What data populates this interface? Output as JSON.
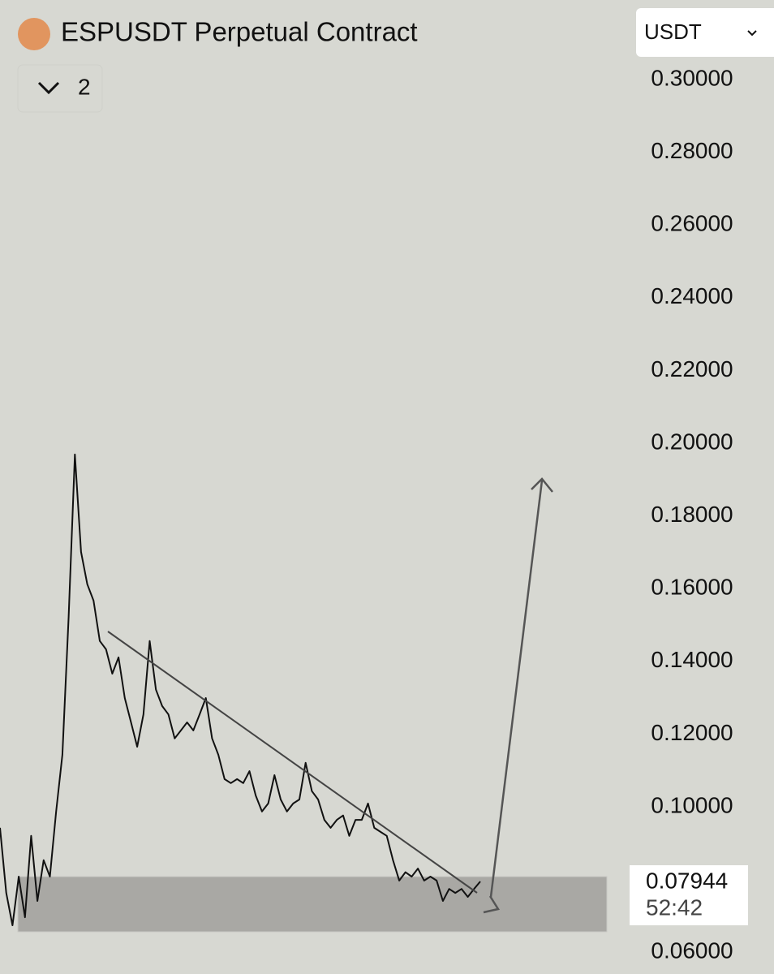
{
  "chart_data": {
    "type": "line",
    "title": "ESPUSDT Perpetual Contract",
    "indicator_count": "2",
    "currency": "USDT",
    "current_price_label": "0.07944",
    "countdown": "52:42",
    "color": "#111111",
    "values": [
      0.0942,
      0.0763,
      0.0674,
      0.0808,
      0.0696,
      0.092,
      0.0741,
      0.0853,
      0.0808,
      0.0987,
      0.1143,
      0.1522,
      0.1969,
      0.1701,
      0.1612,
      0.1567,
      0.1456,
      0.1433,
      0.1366,
      0.1411,
      0.1299,
      0.1232,
      0.1165,
      0.1254,
      0.1456,
      0.1322,
      0.1277,
      0.1254,
      0.1188,
      0.121,
      0.1232,
      0.121,
      0.1254,
      0.1299,
      0.1188,
      0.1143,
      0.1076,
      0.1065,
      0.1076,
      0.1065,
      0.1098,
      0.1031,
      0.0987,
      0.1009,
      0.1087,
      0.102,
      0.0987,
      0.1009,
      0.102,
      0.1121,
      0.1043,
      0.102,
      0.0964,
      0.0942,
      0.0964,
      0.0976,
      0.092,
      0.0964,
      0.0964,
      0.1009,
      0.0942,
      0.0931,
      0.092,
      0.0853,
      0.0797,
      0.082,
      0.0808,
      0.083,
      0.0797,
      0.0808,
      0.0797,
      0.0741,
      0.0774,
      0.0763,
      0.0774,
      0.0752,
      0.0774,
      0.07944
    ],
    "ylim": [
      0.054,
      0.3219
    ],
    "yticks": [
      {
        "value": 0.3,
        "label": "0.30000"
      },
      {
        "value": 0.28,
        "label": "0.28000"
      },
      {
        "value": 0.26,
        "label": "0.26000"
      },
      {
        "value": 0.24,
        "label": "0.24000"
      },
      {
        "value": 0.22,
        "label": "0.22000"
      },
      {
        "value": 0.2,
        "label": "0.20000"
      },
      {
        "value": 0.18,
        "label": "0.18000"
      },
      {
        "value": 0.16,
        "label": "0.16000"
      },
      {
        "value": 0.14,
        "label": "0.14000"
      },
      {
        "value": 0.12,
        "label": "0.12000"
      },
      {
        "value": 0.1,
        "label": "0.10000"
      },
      {
        "value": 0.06,
        "label": "0.06000"
      }
    ]
  }
}
